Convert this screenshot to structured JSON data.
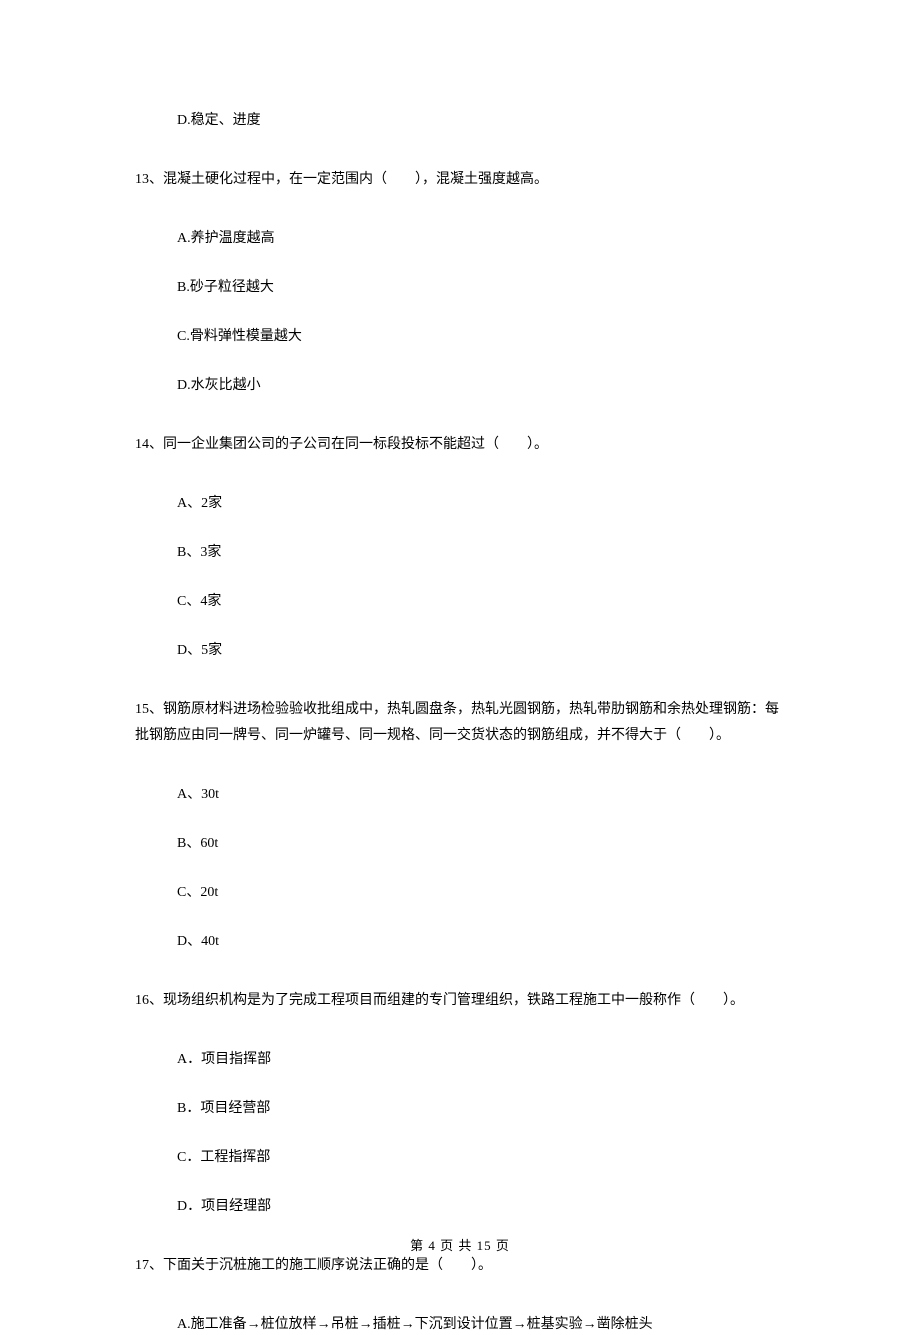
{
  "q12": {
    "optionD": "D.稳定、进度"
  },
  "q13": {
    "stem": "13、混凝土硬化过程中，在一定范围内（　　），混凝土强度越高。",
    "optionA": "A.养护温度越高",
    "optionB": "B.砂子粒径越大",
    "optionC": "C.骨料弹性模量越大",
    "optionD": "D.水灰比越小"
  },
  "q14": {
    "stem": "14、同一企业集团公司的子公司在同一标段投标不能超过（　　）。",
    "optionA": "A、2家",
    "optionB": "B、3家",
    "optionC": "C、4家",
    "optionD": "D、5家"
  },
  "q15": {
    "stem": "15、钢筋原材料进场检验验收批组成中，热轧圆盘条，热轧光圆钢筋，热轧带肋钢筋和余热处理钢筋：每批钢筋应由同一牌号、同一炉罐号、同一规格、同一交货状态的钢筋组成，并不得大于（　　）。",
    "optionA": "A、30t",
    "optionB": "B、60t",
    "optionC": "C、20t",
    "optionD": "D、40t"
  },
  "q16": {
    "stem": "16、现场组织机构是为了完成工程项目而组建的专门管理组织，铁路工程施工中一般称作（　　）。",
    "optionA": "A．项目指挥部",
    "optionB": "B．项目经营部",
    "optionC": "C．工程指挥部",
    "optionD": "D．项目经理部"
  },
  "q17": {
    "stem": "17、下面关于沉桩施工的施工顺序说法正确的是（　　）。",
    "optionA": "A.施工准备→桩位放样→吊桩→插桩→下沉到设计位置→桩基实验→凿除桩头"
  },
  "footer": "第 4 页 共 15 页"
}
